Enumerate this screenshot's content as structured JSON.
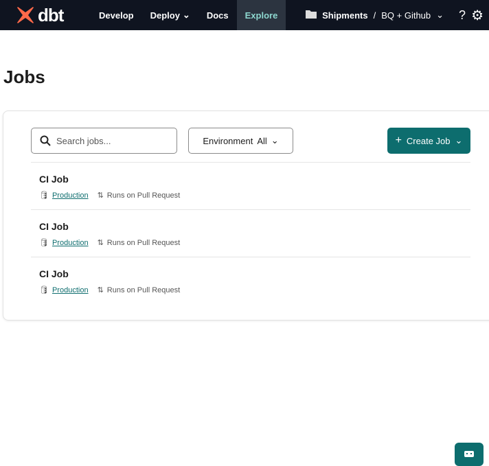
{
  "nav": {
    "logo": "dbt",
    "items": [
      {
        "label": "Develop"
      },
      {
        "label": "Deploy",
        "dropdown": true
      },
      {
        "label": "Docs"
      },
      {
        "label": "Explore",
        "active": true
      }
    ],
    "project": "Shipments",
    "separator": "/",
    "environment": "BQ + Github",
    "help": "?"
  },
  "page": {
    "title": "Jobs"
  },
  "toolbar": {
    "search_placeholder": "Search jobs...",
    "env_label": "Environment",
    "env_value": "All",
    "create_label": "Create Job"
  },
  "jobs": [
    {
      "name": "CI Job",
      "environment": "Production",
      "trigger": "Runs on Pull Request"
    },
    {
      "name": "CI Job",
      "environment": "Production",
      "trigger": "Runs on Pull Request"
    },
    {
      "name": "CI Job",
      "environment": "Production",
      "trigger": "Runs on Pull Request"
    }
  ],
  "colors": {
    "accent": "#0d6d6e",
    "nav_bg": "#0f1420",
    "logo": "#ff694a"
  }
}
